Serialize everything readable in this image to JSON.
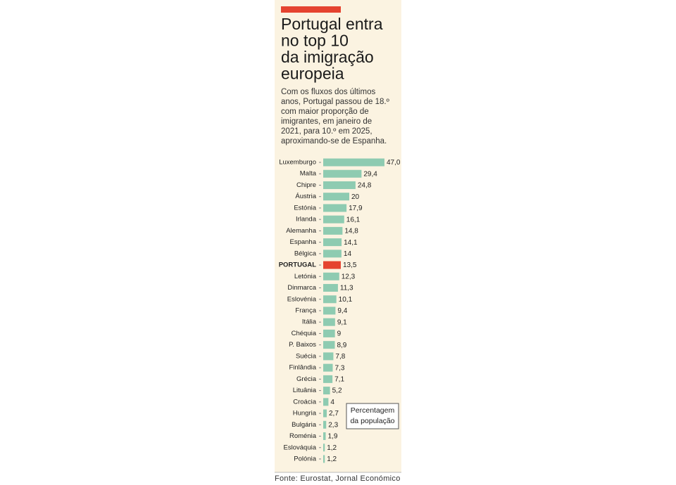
{
  "chart_data": {
    "type": "bar",
    "orientation": "horizontal",
    "title": [
      "Portugal entra",
      "no top 10",
      "da imigração",
      "europeia"
    ],
    "subtitle": [
      "Com os fluxos dos últimos",
      "anos, Portugal passou de 18.º",
      "com maior proporção de",
      "imigrantes, em janeiro de",
      "2021, para 10.º em 2025,",
      "aproximando-se de Espanha."
    ],
    "categories": [
      "Luxemburgo",
      "Malta",
      "Chipre",
      "Áustria",
      "Estónia",
      "Irlanda",
      "Alemanha",
      "Espanha",
      "Bélgica",
      "PORTUGAL",
      "Letónia",
      "Dinmarca",
      "Eslovénia",
      "França",
      "Itália",
      "Chéquia",
      "P. Baixos",
      "Suécia",
      "Finlândia",
      "Grécia",
      "Lituânia",
      "Croácia",
      "Hungria",
      "Bulgária",
      "Roménia",
      "Eslováquia",
      "Polónia"
    ],
    "values": [
      47.0,
      29.4,
      24.8,
      20,
      17.9,
      16.1,
      14.8,
      14.1,
      14,
      13.5,
      12.3,
      11.3,
      10.1,
      9.4,
      9.1,
      9,
      8.9,
      7.8,
      7.3,
      7.1,
      5.2,
      4,
      2.7,
      2.3,
      1.9,
      1.2,
      1.2
    ],
    "value_labels": [
      "47,0",
      "29,4",
      "24,8",
      "20",
      "17,9",
      "16,1",
      "14,8",
      "14,1",
      "14",
      "13,5",
      "12,3",
      "11,3",
      "10,1",
      "9,4",
      "9,1",
      "9",
      "8,9",
      "7,8",
      "7,3",
      "7,1",
      "5,2",
      "4",
      "2,7",
      "2,3",
      "1,9",
      "1,2",
      "1,2"
    ],
    "colors": [
      "#8ecbb1",
      "#8ecbb1",
      "#8ecbb1",
      "#8ecbb1",
      "#8ecbb1",
      "#8ecbb1",
      "#8ecbb1",
      "#8ecbb1",
      "#8ecbb1",
      "#e5432f",
      "#8ecbb1",
      "#8ecbb1",
      "#8ecbb1",
      "#8ecbb1",
      "#8ecbb1",
      "#8ecbb1",
      "#8ecbb1",
      "#8ecbb1",
      "#8ecbb1",
      "#8ecbb1",
      "#8ecbb1",
      "#8ecbb1",
      "#8ecbb1",
      "#8ecbb1",
      "#8ecbb1",
      "#8ecbb1",
      "#8ecbb1"
    ],
    "unit_label": [
      "Percentagem",
      "da população"
    ],
    "source": "Fonte: Eurostat, Jornal Económico"
  }
}
